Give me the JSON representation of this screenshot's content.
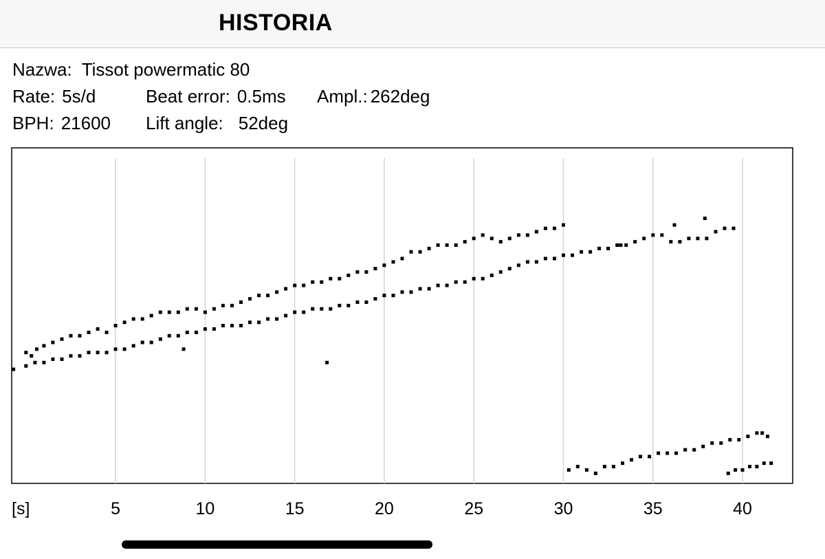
{
  "header": {
    "title": "HISTORIA"
  },
  "info": {
    "name_label": "Nazwa:",
    "name_value": "Tissot powermatic 80",
    "rate_label": "Rate:",
    "rate_value": "5s/d",
    "beat_error_label": "Beat error:",
    "beat_error_value": "0.5ms",
    "ampl_label": "Ampl.:",
    "ampl_value": "262deg",
    "bph_label": "BPH:",
    "bph_value": "21600",
    "lift_label": "Lift angle:",
    "lift_value": "52deg"
  },
  "chart_data": {
    "type": "scatter",
    "xlabel": "[s]",
    "xlim": [
      -0.8,
      42.8
    ],
    "ylim": [
      0,
      1
    ],
    "x_ticks": [
      5,
      10,
      15,
      20,
      25,
      30,
      35,
      40
    ],
    "grid": "vertical",
    "series": [
      {
        "points": [
          [
            0,
            0.39
          ],
          [
            0.3,
            0.38
          ],
          [
            0.6,
            0.4
          ],
          [
            1,
            0.41
          ],
          [
            1.5,
            0.42
          ],
          [
            2,
            0.43
          ],
          [
            2.5,
            0.44
          ],
          [
            3,
            0.44
          ],
          [
            3.5,
            0.45
          ],
          [
            4,
            0.46
          ],
          [
            4.5,
            0.45
          ],
          [
            5,
            0.47
          ],
          [
            5.5,
            0.48
          ],
          [
            6,
            0.49
          ],
          [
            6.5,
            0.49
          ],
          [
            7,
            0.5
          ],
          [
            7.5,
            0.51
          ],
          [
            8,
            0.51
          ],
          [
            8.5,
            0.51
          ],
          [
            9,
            0.52
          ],
          [
            9.5,
            0.52
          ],
          [
            10,
            0.51
          ],
          [
            10.5,
            0.52
          ],
          [
            11,
            0.53
          ],
          [
            11.5,
            0.53
          ],
          [
            12,
            0.54
          ],
          [
            12.5,
            0.55
          ],
          [
            13,
            0.56
          ],
          [
            13.5,
            0.56
          ],
          [
            14,
            0.57
          ],
          [
            14.5,
            0.58
          ],
          [
            15,
            0.59
          ],
          [
            15.5,
            0.59
          ],
          [
            16,
            0.6
          ],
          [
            16.5,
            0.6
          ],
          [
            17,
            0.61
          ],
          [
            17.5,
            0.61
          ],
          [
            18,
            0.62
          ],
          [
            18.5,
            0.63
          ],
          [
            19,
            0.63
          ],
          [
            19.5,
            0.64
          ],
          [
            20,
            0.65
          ],
          [
            20.5,
            0.66
          ],
          [
            21,
            0.67
          ],
          [
            21.5,
            0.69
          ],
          [
            22,
            0.69
          ],
          [
            22.5,
            0.7
          ],
          [
            23,
            0.71
          ],
          [
            23.5,
            0.71
          ],
          [
            24,
            0.71
          ],
          [
            24.5,
            0.72
          ],
          [
            25,
            0.73
          ],
          [
            25.5,
            0.74
          ],
          [
            26,
            0.73
          ],
          [
            26.5,
            0.72
          ],
          [
            27,
            0.73
          ],
          [
            27.5,
            0.74
          ],
          [
            28,
            0.74
          ],
          [
            28.5,
            0.75
          ],
          [
            29,
            0.76
          ],
          [
            29.5,
            0.76
          ],
          [
            30,
            0.77
          ]
        ]
      },
      {
        "points": [
          [
            -0.7,
            0.34
          ],
          [
            0,
            0.35
          ],
          [
            0.5,
            0.36
          ],
          [
            1,
            0.36
          ],
          [
            1.5,
            0.37
          ],
          [
            2,
            0.37
          ],
          [
            2.5,
            0.38
          ],
          [
            3,
            0.38
          ],
          [
            3.5,
            0.39
          ],
          [
            4,
            0.39
          ],
          [
            4.5,
            0.39
          ],
          [
            5,
            0.4
          ],
          [
            5.5,
            0.4
          ],
          [
            6,
            0.41
          ],
          [
            6.5,
            0.42
          ],
          [
            7,
            0.42
          ],
          [
            7.5,
            0.43
          ],
          [
            8,
            0.44
          ],
          [
            8.5,
            0.44
          ],
          [
            9,
            0.45
          ],
          [
            9.5,
            0.45
          ],
          [
            10,
            0.46
          ],
          [
            10.5,
            0.46
          ],
          [
            11,
            0.47
          ],
          [
            11.5,
            0.47
          ],
          [
            12,
            0.47
          ],
          [
            12.5,
            0.48
          ],
          [
            13,
            0.48
          ],
          [
            13.5,
            0.49
          ],
          [
            14,
            0.49
          ],
          [
            14.5,
            0.5
          ],
          [
            15,
            0.51
          ],
          [
            15.5,
            0.51
          ],
          [
            16,
            0.52
          ],
          [
            16.5,
            0.52
          ],
          [
            17,
            0.52
          ],
          [
            17.5,
            0.53
          ],
          [
            18,
            0.53
          ],
          [
            18.5,
            0.54
          ],
          [
            19,
            0.54
          ],
          [
            19.5,
            0.55
          ],
          [
            20,
            0.56
          ],
          [
            20.5,
            0.56
          ],
          [
            21,
            0.57
          ],
          [
            21.5,
            0.57
          ],
          [
            22,
            0.58
          ],
          [
            22.5,
            0.58
          ],
          [
            23,
            0.59
          ],
          [
            23.5,
            0.59
          ],
          [
            24,
            0.6
          ],
          [
            24.5,
            0.6
          ],
          [
            25,
            0.61
          ],
          [
            25.5,
            0.61
          ],
          [
            26,
            0.62
          ],
          [
            26.5,
            0.63
          ],
          [
            27,
            0.64
          ],
          [
            27.5,
            0.65
          ],
          [
            28,
            0.66
          ],
          [
            28.5,
            0.66
          ],
          [
            29,
            0.67
          ],
          [
            29.5,
            0.67
          ],
          [
            30,
            0.68
          ],
          [
            30.5,
            0.68
          ],
          [
            31,
            0.69
          ],
          [
            31.5,
            0.69
          ],
          [
            32,
            0.7
          ],
          [
            32.5,
            0.7
          ],
          [
            33,
            0.71
          ],
          [
            33.5,
            0.71
          ],
          [
            34,
            0.72
          ],
          [
            34.5,
            0.73
          ],
          [
            35,
            0.74
          ],
          [
            35.5,
            0.74
          ],
          [
            36,
            0.72
          ],
          [
            36.5,
            0.72
          ],
          [
            37,
            0.73
          ],
          [
            37.5,
            0.73
          ],
          [
            38,
            0.73
          ],
          [
            38.5,
            0.75
          ],
          [
            39,
            0.76
          ],
          [
            39.5,
            0.76
          ]
        ]
      },
      {
        "points": [
          [
            30.3,
            0.04
          ],
          [
            30.8,
            0.05
          ],
          [
            31.3,
            0.04
          ],
          [
            31.8,
            0.03
          ],
          [
            32.3,
            0.05
          ],
          [
            32.8,
            0.05
          ],
          [
            33.3,
            0.06
          ],
          [
            33.8,
            0.07
          ],
          [
            34.3,
            0.08
          ],
          [
            34.8,
            0.08
          ],
          [
            35.3,
            0.09
          ],
          [
            35.8,
            0.09
          ],
          [
            36.3,
            0.09
          ],
          [
            36.8,
            0.1
          ],
          [
            37.3,
            0.1
          ],
          [
            37.8,
            0.11
          ],
          [
            38.3,
            0.12
          ],
          [
            38.8,
            0.12
          ],
          [
            39.3,
            0.13
          ],
          [
            39.8,
            0.13
          ],
          [
            40.3,
            0.14
          ],
          [
            40.8,
            0.15
          ],
          [
            41.1,
            0.15
          ],
          [
            41.4,
            0.14
          ]
        ]
      },
      {
        "points": [
          [
            39.2,
            0.03
          ],
          [
            39.6,
            0.04
          ],
          [
            40,
            0.04
          ],
          [
            40.4,
            0.05
          ],
          [
            40.8,
            0.05
          ],
          [
            41.2,
            0.06
          ],
          [
            41.6,
            0.06
          ]
        ]
      },
      {
        "points": [
          [
            8.8,
            0.4
          ],
          [
            16.8,
            0.36
          ],
          [
            33.2,
            0.71
          ],
          [
            36.2,
            0.77
          ],
          [
            37.9,
            0.79
          ]
        ]
      }
    ]
  }
}
